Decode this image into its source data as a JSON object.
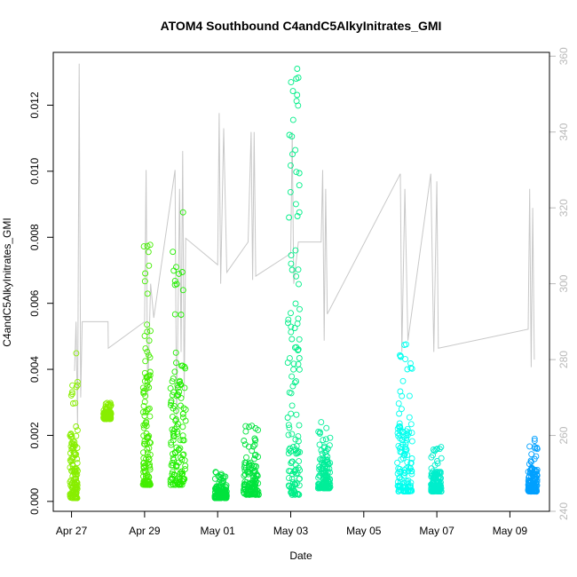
{
  "chart_data": {
    "type": "scatter",
    "title": "ATOM4 Southbound C4andC5AlkyInitrates_GMI",
    "xlabel": "Date",
    "ylabel": "C4andC5AlkyInitrates_GMI",
    "x_ticks": [
      "Apr 27",
      "Apr 29",
      "May 01",
      "May 03",
      "May 05",
      "May 07",
      "May 09"
    ],
    "y_ticks": [
      "0.000",
      "0.002",
      "0.004",
      "0.006",
      "0.008",
      "0.010",
      "0.012"
    ],
    "y2_ticks": [
      "240",
      "260",
      "280",
      "300",
      "320",
      "340",
      "360"
    ],
    "xlim": [
      "2018-04-26T12:00",
      "2018-05-10T02:00"
    ],
    "ylim": [
      -0.0003,
      0.0136
    ],
    "y2lim": [
      240,
      361
    ],
    "y2_axis_color": "#b9b9b9",
    "secondary_series_color": "#c8c8c8",
    "secondary_series": [
      [
        "2018-04-27T02:00",
        277
      ],
      [
        "2018-04-27T03:00",
        290
      ],
      [
        "2018-04-27T04:00",
        262
      ],
      [
        "2018-04-27T05:00",
        358
      ],
      [
        "2018-04-27T06:00",
        270
      ],
      [
        "2018-04-27T07:00",
        290
      ],
      [
        "2018-04-28T00:00",
        290
      ],
      [
        "2018-04-28T00:10",
        283
      ],
      [
        "2018-04-29T00:00",
        290
      ],
      [
        "2018-04-29T01:00",
        330
      ],
      [
        "2018-04-29T02:00",
        270
      ],
      [
        "2018-04-29T04:00",
        300
      ],
      [
        "2018-04-29T06:00",
        291
      ],
      [
        "2018-04-29T20:00",
        330
      ],
      [
        "2018-04-29T21:00",
        262
      ],
      [
        "2018-04-29T23:00",
        325
      ],
      [
        "2018-04-30T00:00",
        282
      ],
      [
        "2018-04-30T01:00",
        335
      ],
      [
        "2018-04-30T02:00",
        270
      ],
      [
        "2018-04-30T03:00",
        312
      ],
      [
        "2018-05-01T00:00",
        305
      ],
      [
        "2018-05-01T01:00",
        345
      ],
      [
        "2018-05-01T02:00",
        300
      ],
      [
        "2018-05-01T04:00",
        341
      ],
      [
        "2018-05-01T06:00",
        303
      ],
      [
        "2018-05-01T20:00",
        311
      ],
      [
        "2018-05-01T22:00",
        340
      ],
      [
        "2018-05-01T23:00",
        301
      ],
      [
        "2018-05-02T00:00",
        340
      ],
      [
        "2018-05-02T01:00",
        302
      ],
      [
        "2018-05-03T00:00",
        308
      ],
      [
        "2018-05-03T01:00",
        340
      ],
      [
        "2018-05-03T02:00",
        300
      ],
      [
        "2018-05-03T05:00",
        311
      ],
      [
        "2018-05-03T20:00",
        311
      ],
      [
        "2018-05-03T21:00",
        330
      ],
      [
        "2018-05-03T22:00",
        285
      ],
      [
        "2018-05-03T23:00",
        325
      ],
      [
        "2018-05-04T00:00",
        292
      ],
      [
        "2018-05-06T00:00",
        329
      ],
      [
        "2018-05-06T01:00",
        282
      ],
      [
        "2018-05-06T03:00",
        325
      ],
      [
        "2018-05-06T05:00",
        285
      ],
      [
        "2018-05-06T20:00",
        329
      ],
      [
        "2018-05-06T22:00",
        282
      ],
      [
        "2018-05-07T00:00",
        327
      ],
      [
        "2018-05-07T01:00",
        283
      ],
      [
        "2018-05-09T12:00",
        288
      ],
      [
        "2018-05-09T13:00",
        325
      ],
      [
        "2018-05-09T14:00",
        278
      ],
      [
        "2018-05-09T15:00",
        320
      ],
      [
        "2018-05-09T16:00",
        280
      ]
    ],
    "series": [
      {
        "x_range": [
          "2018-04-26T23:00",
          "2018-04-27T04:00"
        ],
        "y_range": [
          0.0001,
          0.0045
        ],
        "color": "#88ee00"
      },
      {
        "x_range": [
          "2018-04-27T21:00",
          "2018-04-28T02:00"
        ],
        "y_range": [
          0.0025,
          0.003
        ],
        "color": "#88ee00"
      },
      {
        "x_range": [
          "2018-04-28T23:00",
          "2018-04-29T04:00"
        ],
        "y_range": [
          0.0005,
          0.0084
        ],
        "color": "#44ee00"
      },
      {
        "x_range": [
          "2018-04-29T17:00",
          "2018-04-30T03:00"
        ],
        "y_range": [
          0.0005,
          0.0088
        ],
        "color": "#22ee00"
      },
      {
        "x_range": [
          "2018-04-30T22:00",
          "2018-05-01T06:00"
        ],
        "y_range": [
          0.0001,
          0.0009
        ],
        "color": "#00e33d"
      },
      {
        "x_range": [
          "2018-05-01T17:00",
          "2018-05-02T03:00"
        ],
        "y_range": [
          0.0002,
          0.0023
        ],
        "color": "#00e33d"
      },
      {
        "x_range": [
          "2018-05-02T22:00",
          "2018-05-03T06:00"
        ],
        "y_range": [
          0.0002,
          0.0132
        ],
        "color": "#00ee88"
      },
      {
        "x_range": [
          "2018-05-03T18:00",
          "2018-05-04T02:00"
        ],
        "y_range": [
          0.0004,
          0.0024
        ],
        "color": "#00ee99"
      },
      {
        "x_range": [
          "2018-05-05T22:00",
          "2018-05-06T08:00"
        ],
        "y_range": [
          0.0003,
          0.0049
        ],
        "color": "#00ffee"
      },
      {
        "x_range": [
          "2018-05-06T20:00",
          "2018-05-07T03:00"
        ],
        "y_range": [
          0.0003,
          0.0017
        ],
        "color": "#00eecc"
      },
      {
        "x_range": [
          "2018-05-09T12:00",
          "2018-05-09T18:00"
        ],
        "y_range": [
          0.0003,
          0.0019
        ],
        "color": "#00a0ff"
      }
    ],
    "grid": false,
    "legend": "none"
  }
}
